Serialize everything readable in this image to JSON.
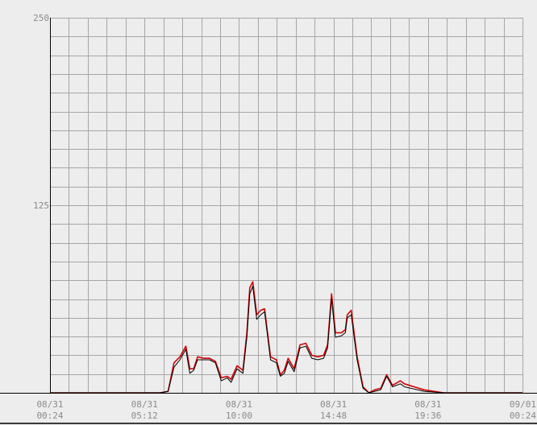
{
  "chart_data": {
    "type": "line",
    "title": "",
    "xlabel": "",
    "ylabel": "",
    "ylim": [
      0,
      250
    ],
    "y_ticks": [
      "250",
      "125"
    ],
    "x_ticks": [
      {
        "date": "08/31",
        "time": "00:24"
      },
      {
        "date": "08/31",
        "time": "05:12"
      },
      {
        "date": "08/31",
        "time": "10:00"
      },
      {
        "date": "08/31",
        "time": "14:48"
      },
      {
        "date": "08/31",
        "time": "19:36"
      },
      {
        "date": "09/01",
        "time": "00:24"
      }
    ],
    "x_range_hours": [
      0,
      24
    ],
    "grid": true,
    "colors": {
      "background": "#ededed",
      "grid": "#a6a6a6",
      "axis": "#000000",
      "series_red": "#d40000",
      "series_black": "#000000"
    },
    "series": [
      {
        "color": "#d40000",
        "x": [
          0,
          1,
          2,
          3,
          4,
          5,
          5.6,
          6.0,
          6.3,
          6.6,
          6.9,
          7.1,
          7.3,
          7.5,
          7.8,
          8.1,
          8.4,
          8.7,
          9.0,
          9.2,
          9.5,
          9.8,
          10.0,
          10.15,
          10.3,
          10.5,
          10.7,
          10.9,
          11.2,
          11.5,
          11.7,
          11.9,
          12.1,
          12.4,
          12.7,
          13.0,
          13.3,
          13.6,
          13.9,
          14.1,
          14.3,
          14.5,
          14.8,
          15.0,
          15.1,
          15.3,
          15.6,
          15.9,
          16.2,
          16.5,
          16.8,
          17.1,
          17.4,
          17.8,
          18.0,
          19,
          20,
          21,
          22,
          23,
          24
        ],
        "values": [
          0,
          0,
          0,
          0,
          0,
          0,
          0,
          1,
          20,
          24,
          31,
          16,
          16,
          24,
          23,
          23,
          21,
          10,
          11,
          9,
          18,
          15,
          40,
          70,
          74,
          52,
          55,
          56,
          24,
          22,
          12,
          15,
          23,
          16,
          32,
          33,
          25,
          24,
          25,
          32,
          66,
          40,
          40,
          42,
          52,
          55,
          24,
          4,
          0,
          2,
          3,
          12,
          5,
          8,
          6,
          2,
          0,
          0,
          0,
          0,
          0
        ]
      },
      {
        "color": "#000000",
        "x": [
          0,
          1,
          2,
          3,
          4,
          5,
          5.6,
          6.0,
          6.3,
          6.6,
          6.9,
          7.1,
          7.3,
          7.5,
          7.8,
          8.1,
          8.4,
          8.7,
          9.0,
          9.2,
          9.5,
          9.8,
          10.0,
          10.15,
          10.3,
          10.5,
          10.7,
          10.9,
          11.2,
          11.5,
          11.7,
          11.9,
          12.1,
          12.4,
          12.7,
          13.0,
          13.3,
          13.6,
          13.9,
          14.1,
          14.3,
          14.5,
          14.8,
          15.0,
          15.1,
          15.3,
          15.6,
          15.9,
          16.2,
          16.5,
          16.8,
          17.1,
          17.4,
          17.8,
          18.0,
          19,
          20,
          21,
          22,
          23,
          24
        ],
        "values": [
          0,
          0,
          0,
          0,
          0,
          0,
          0,
          1,
          17,
          22,
          29,
          13,
          15,
          22,
          22,
          22,
          20,
          8,
          10,
          7,
          16,
          13,
          37,
          66,
          71,
          49,
          52,
          54,
          22,
          20,
          11,
          13,
          21,
          14,
          30,
          31,
          23,
          22,
          23,
          30,
          63,
          37,
          38,
          40,
          50,
          52,
          22,
          3,
          0,
          1,
          2,
          11,
          4,
          6,
          4,
          1,
          0,
          0,
          0,
          0,
          0
        ]
      }
    ]
  }
}
